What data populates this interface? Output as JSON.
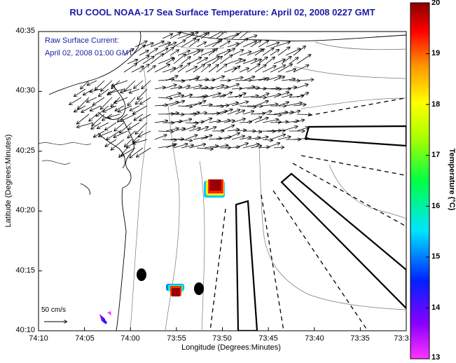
{
  "title": "RU COOL  NOAA-17  Sea Surface Temperature:  April 02, 2008 0227 GMT",
  "legend": {
    "line1": "Raw Surface Current:",
    "line2": "April 02, 2008 01:00 GMT"
  },
  "axes": {
    "xlabel": "Longitude (Degrees:Minutes)",
    "ylabel": "Latitude (Degrees:Minutes)",
    "xticks": [
      "74:10",
      "74:05",
      "74:00",
      "73:55",
      "73:50",
      "73:45",
      "73:40",
      "73:35",
      "73:3"
    ],
    "yticks": [
      "40:35",
      "40:30",
      "40:25",
      "40:20",
      "40:15",
      "40:10"
    ]
  },
  "colorbar": {
    "label": "Temperature (°C)",
    "ticks": [
      "20",
      "19",
      "18",
      "17",
      "16",
      "15",
      "14",
      "13"
    ],
    "colors": [
      "#8b0000",
      "#ff0000",
      "#ff8c00",
      "#ffff00",
      "#00ff00",
      "#00ffff",
      "#0040ff",
      "#ff00ff"
    ]
  },
  "scale": {
    "label": "50 cm/s"
  }
}
